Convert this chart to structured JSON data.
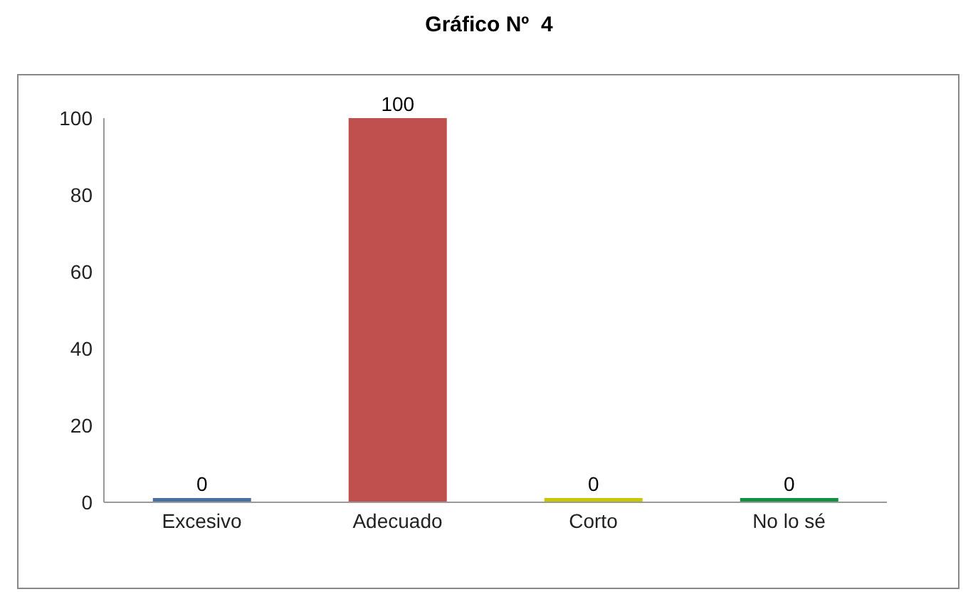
{
  "chart_data": {
    "type": "bar",
    "title": "Gráfico Nº  4",
    "categories": [
      "Excesivo",
      "Adecuado",
      "Corto",
      "No lo sé"
    ],
    "values": [
      0,
      100,
      0,
      0
    ],
    "colors": [
      "#4a6fa5",
      "#c0504d",
      "#c8c800",
      "#109040"
    ],
    "ylim": [
      0,
      100
    ],
    "yticks": [
      0,
      20,
      40,
      60,
      80,
      100
    ],
    "data_labels": true,
    "grid": false,
    "legend": false
  }
}
